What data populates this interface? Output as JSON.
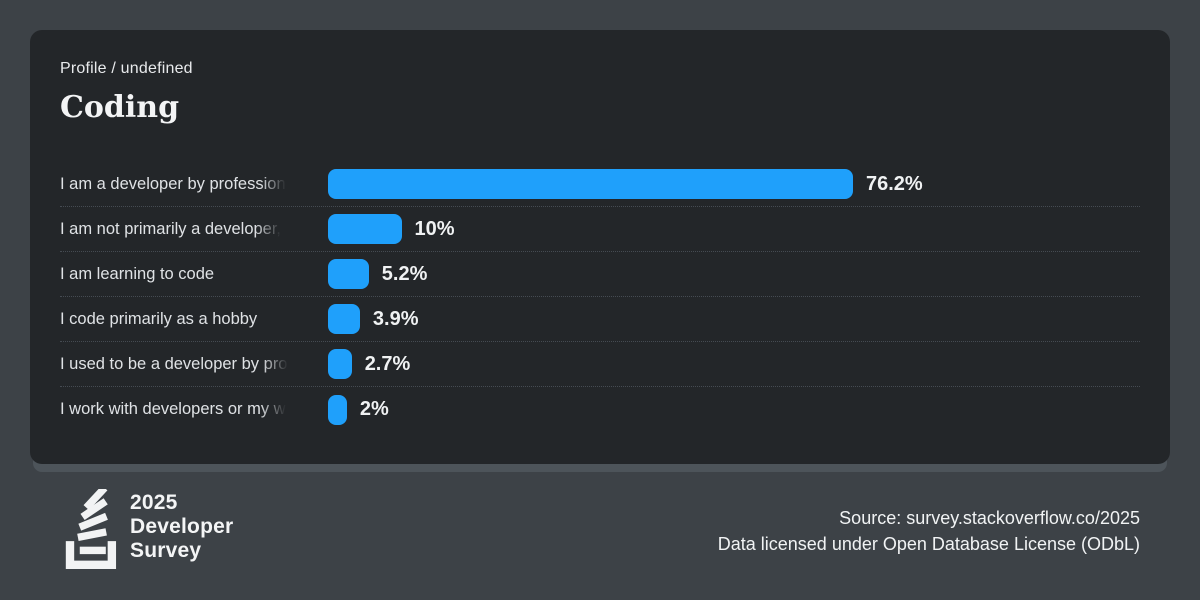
{
  "page": {
    "background_color": "#3d4247",
    "card_background": "#232629",
    "accent_color": "#1fa0fb"
  },
  "header": {
    "breadcrumb": "Profile / undefined",
    "title": "Coding"
  },
  "chart_data": {
    "type": "bar",
    "orientation": "horizontal",
    "title": "Coding",
    "bar_color": "#1fa0fb",
    "grid": "dotted-row-separators",
    "categories": [
      "I am a developer by profession",
      "I am not primarily a developer,",
      "I am learning to code",
      "I code primarily as a hobby",
      "I used to be a developer by pro",
      "I work with developers or my w"
    ],
    "values": [
      76.2,
      10,
      5.2,
      3.9,
      2.7,
      2
    ],
    "value_labels": [
      "76.2%",
      "10%",
      "5.2%",
      "3.9%",
      "2.7%",
      "2%"
    ],
    "truncated": [
      true,
      true,
      false,
      false,
      true,
      true
    ]
  },
  "footer": {
    "logo_icon": "stackoverflow-logo",
    "logo_line1": "2025",
    "logo_line2": "Developer",
    "logo_line3": "Survey",
    "source_line1": "Source: survey.stackoverflow.co/2025",
    "source_line2": "Data licensed under Open Database License (ODbL)"
  }
}
